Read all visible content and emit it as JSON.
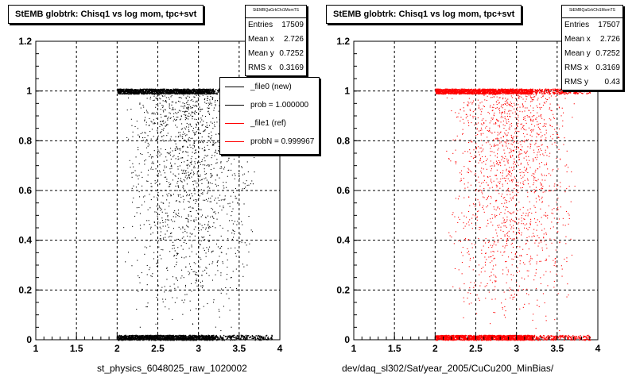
{
  "colors": {
    "new": "#000000",
    "ref": "#ff0000",
    "grid": "#000000"
  },
  "left": {
    "title": "StEMB globtrk: Chisq1 vs log mom, tpc+svt",
    "stats": {
      "name": "StEMBQaGrkChi1MomTS",
      "rows": [
        {
          "label": "Entries",
          "value": "17509"
        },
        {
          "label": "Mean x",
          "value": "2.726"
        },
        {
          "label": "Mean y",
          "value": "0.7252"
        },
        {
          "label": "RMS x",
          "value": "0.3169"
        }
      ]
    },
    "legend": [
      {
        "text": "_file0 (new)",
        "color": "#000000"
      },
      {
        "text": "prob = 1.000000",
        "color": "#000000"
      },
      {
        "text": "_file1 (ref)",
        "color": "#ff0000"
      },
      {
        "text": "probN = 0.999967",
        "color": "#ff0000"
      }
    ],
    "xlabel": "st_physics_6048025_raw_1020002"
  },
  "right": {
    "title": "StEMB globtrk: Chisq1 vs log mom, tpc+svt",
    "stats": {
      "name": "StEMBQaGrkChi1MomTS",
      "rows": [
        {
          "label": "Entries",
          "value": "17507"
        },
        {
          "label": "Mean x",
          "value": "2.726"
        },
        {
          "label": "Mean y",
          "value": "0.7252"
        },
        {
          "label": "RMS x",
          "value": "0.3169"
        },
        {
          "label": "RMS y",
          "value": "0.43"
        }
      ]
    },
    "xlabel": "dev/daq_sl302/Sat/year_2005/CuCu200_MinBias/"
  },
  "chart_data": [
    {
      "type": "scatter",
      "title": "StEMB globtrk: Chisq1 vs log mom, tpc+svt",
      "xlabel": "st_physics_6048025_raw_1020002",
      "ylabel": "",
      "xlim": [
        1,
        4
      ],
      "ylim": [
        0,
        1.2
      ],
      "x_ticks": [
        "1",
        "1.5",
        "2",
        "2.5",
        "3",
        "3.5",
        "4"
      ],
      "y_ticks": [
        "0",
        "0.2",
        "0.4",
        "0.6",
        "0.8",
        "1",
        "1.2"
      ],
      "grid": true,
      "legend_position": "top-right",
      "series": [
        {
          "name": "_file0 (new)",
          "color": "#000000",
          "x_range": [
            2.0,
            3.9
          ],
          "y_bands": [
            0.01,
            1.0
          ],
          "count": 17509
        }
      ]
    },
    {
      "type": "scatter",
      "title": "StEMB globtrk: Chisq1 vs log mom, tpc+svt",
      "xlabel": "dev/daq_sl302/Sat/year_2005/CuCu200_MinBias/",
      "ylabel": "",
      "xlim": [
        1,
        4
      ],
      "ylim": [
        0,
        1.2
      ],
      "x_ticks": [
        "1",
        "1.5",
        "2",
        "2.5",
        "3",
        "3.5",
        "4"
      ],
      "y_ticks": [
        "0",
        "0.2",
        "0.4",
        "0.6",
        "0.8",
        "1",
        "1.2"
      ],
      "grid": true,
      "series": [
        {
          "name": "_file1 (ref)",
          "color": "#ff0000",
          "x_range": [
            2.0,
            3.9
          ],
          "y_bands": [
            0.01,
            1.0
          ],
          "count": 17507
        }
      ]
    }
  ]
}
